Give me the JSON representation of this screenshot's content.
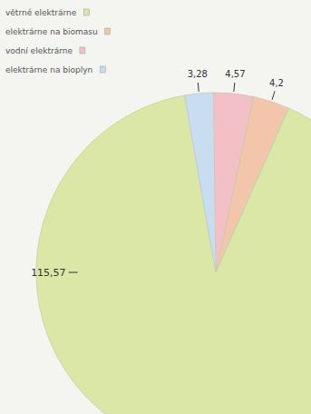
{
  "chart_data": {
    "type": "pie",
    "categories": [
      "větrné elektrárne",
      "elektrárne na biomasu",
      "vodní elektrárne",
      "elektrárne na bioplyn"
    ],
    "values": [
      115.57,
      4.2,
      4.57,
      3.28
    ],
    "value_labels": [
      "115,57",
      "4,2",
      "4,57",
      "3,28"
    ],
    "colors": [
      "#dbe7a6",
      "#f3c6ab",
      "#f2c0c6",
      "#c8ddef"
    ],
    "data_labels": true,
    "legend": "top-left"
  }
}
